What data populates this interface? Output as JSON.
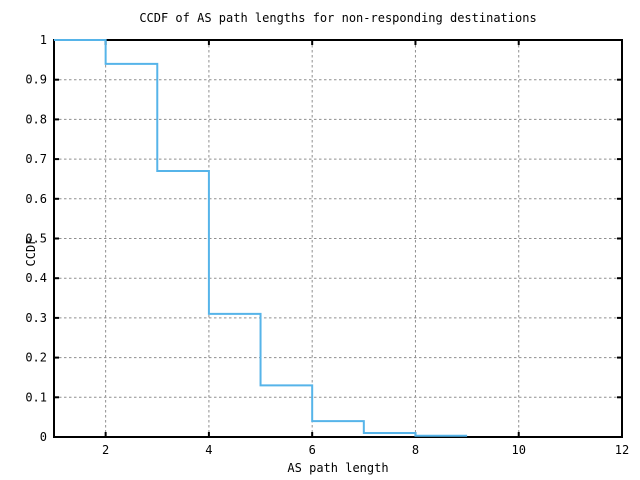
{
  "figure": {
    "title": "CCDF of AS path lengths for non-responding destinations",
    "xlabel": "AS path length",
    "ylabel": "CCDF"
  },
  "chart_data": {
    "type": "line",
    "subtype": "ccdf-step",
    "title": "CCDF of AS path lengths for non-responding destinations",
    "xlabel": "AS path length",
    "ylabel": "CCDF",
    "xlim": [
      1,
      12
    ],
    "ylim": [
      0,
      1
    ],
    "xticks": {
      "values": [
        2,
        4,
        6,
        8,
        10,
        12
      ],
      "labels": [
        "2",
        "4",
        "6",
        "8",
        "10",
        "12"
      ]
    },
    "yticks": {
      "values": [
        0,
        0.1,
        0.2,
        0.3,
        0.4,
        0.5,
        0.6,
        0.7,
        0.8,
        0.9,
        1
      ],
      "labels": [
        "0",
        "0.1",
        "0.2",
        "0.3",
        "0.4",
        "0.5",
        "0.6",
        "0.7",
        "0.8",
        "0.9",
        "1"
      ]
    },
    "grid": true,
    "legend": "none",
    "colors": {
      "line": "#56B4E9",
      "grid": "#8f8f8f",
      "border": "#000000",
      "text": "#000000",
      "background": "#ffffff"
    },
    "steps": [
      {
        "x": 1,
        "ccdf": 1.0
      },
      {
        "x": 2,
        "ccdf": 0.94
      },
      {
        "x": 3,
        "ccdf": 0.67
      },
      {
        "x": 4,
        "ccdf": 0.31
      },
      {
        "x": 5,
        "ccdf": 0.13
      },
      {
        "x": 6,
        "ccdf": 0.04
      },
      {
        "x": 7,
        "ccdf": 0.01
      },
      {
        "x": 8,
        "ccdf": 0.003
      }
    ],
    "x_end": 9
  }
}
